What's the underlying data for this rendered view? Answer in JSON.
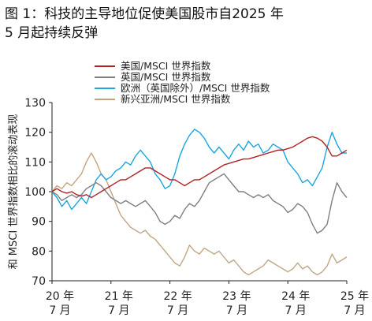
{
  "title_line1": "图 1：科技的主导地位促使美国股市自2025 年",
  "title_line2": "5 月起持续反弹",
  "chart_data": {
    "type": "line",
    "title": "图 1：科技的主导地位促使美国股市自2025 年 5 月起持续反弹",
    "ylabel": "和 MSCI 世界指数相比的滚动表现",
    "ylim": [
      70,
      130
    ],
    "yticks": [
      70,
      80,
      90,
      100,
      110,
      120,
      130
    ],
    "xlim": [
      0,
      60
    ],
    "xticks": [
      {
        "x": 0,
        "line1": "20 年",
        "line2": "7 月"
      },
      {
        "x": 12,
        "line1": "21 年",
        "line2": "7 月"
      },
      {
        "x": 24,
        "line1": "22 年",
        "line2": "7 月"
      },
      {
        "x": 36,
        "line1": "23 年",
        "line2": "7 月"
      },
      {
        "x": 48,
        "line1": "24 年",
        "line2": "7 月"
      },
      {
        "x": 60,
        "line1": "25 年",
        "line2": "7 月"
      }
    ],
    "legend_position": "top",
    "series": [
      {
        "name": "美国/MSCI 世界指数",
        "color": "#b22222",
        "points": [
          [
            0,
            100
          ],
          [
            1,
            101
          ],
          [
            2,
            100
          ],
          [
            3,
            99.5
          ],
          [
            4,
            100
          ],
          [
            5,
            99
          ],
          [
            6,
            98.5
          ],
          [
            7,
            99
          ],
          [
            8,
            98
          ],
          [
            9,
            99
          ],
          [
            10,
            100
          ],
          [
            11,
            101
          ],
          [
            12,
            102
          ],
          [
            13,
            103
          ],
          [
            14,
            104
          ],
          [
            15,
            104
          ],
          [
            16,
            105
          ],
          [
            17,
            106
          ],
          [
            18,
            107
          ],
          [
            19,
            108
          ],
          [
            20,
            108
          ],
          [
            21,
            107
          ],
          [
            22,
            106
          ],
          [
            23,
            105
          ],
          [
            24,
            104
          ],
          [
            25,
            104
          ],
          [
            26,
            103
          ],
          [
            27,
            102
          ],
          [
            28,
            103
          ],
          [
            29,
            104
          ],
          [
            30,
            104
          ],
          [
            31,
            105
          ],
          [
            32,
            106
          ],
          [
            33,
            107
          ],
          [
            34,
            108
          ],
          [
            35,
            109
          ],
          [
            36,
            109.5
          ],
          [
            37,
            110
          ],
          [
            38,
            110.5
          ],
          [
            39,
            111
          ],
          [
            40,
            111
          ],
          [
            41,
            111.5
          ],
          [
            42,
            112
          ],
          [
            43,
            112.5
          ],
          [
            44,
            113
          ],
          [
            45,
            113.5
          ],
          [
            46,
            114
          ],
          [
            47,
            114
          ],
          [
            48,
            114.5
          ],
          [
            49,
            115
          ],
          [
            50,
            116
          ],
          [
            51,
            117
          ],
          [
            52,
            118
          ],
          [
            53,
            118.5
          ],
          [
            54,
            118
          ],
          [
            55,
            117
          ],
          [
            56,
            115
          ],
          [
            57,
            112
          ],
          [
            58,
            112
          ],
          [
            59,
            113
          ],
          [
            60,
            114
          ]
        ]
      },
      {
        "name": "英国/MSCI 世界指数",
        "color": "#7f7f7f",
        "points": [
          [
            0,
            100
          ],
          [
            1,
            99
          ],
          [
            2,
            97
          ],
          [
            3,
            98
          ],
          [
            4,
            99
          ],
          [
            5,
            98
          ],
          [
            6,
            99
          ],
          [
            7,
            101
          ],
          [
            8,
            102
          ],
          [
            9,
            103
          ],
          [
            10,
            102
          ],
          [
            11,
            100
          ],
          [
            12,
            98
          ],
          [
            13,
            97
          ],
          [
            14,
            96
          ],
          [
            15,
            97
          ],
          [
            16,
            96
          ],
          [
            17,
            95
          ],
          [
            18,
            96
          ],
          [
            19,
            97
          ],
          [
            20,
            95
          ],
          [
            21,
            93
          ],
          [
            22,
            90
          ],
          [
            23,
            89
          ],
          [
            24,
            90
          ],
          [
            25,
            92
          ],
          [
            26,
            91
          ],
          [
            27,
            94
          ],
          [
            28,
            96
          ],
          [
            29,
            95
          ],
          [
            30,
            97
          ],
          [
            31,
            100
          ],
          [
            32,
            103
          ],
          [
            33,
            104
          ],
          [
            34,
            105
          ],
          [
            35,
            106
          ],
          [
            36,
            104
          ],
          [
            37,
            102
          ],
          [
            38,
            100
          ],
          [
            39,
            100
          ],
          [
            40,
            99
          ],
          [
            41,
            98
          ],
          [
            42,
            99
          ],
          [
            43,
            98
          ],
          [
            44,
            99
          ],
          [
            45,
            97
          ],
          [
            46,
            96
          ],
          [
            47,
            95
          ],
          [
            48,
            93
          ],
          [
            49,
            94
          ],
          [
            50,
            96
          ],
          [
            51,
            95
          ],
          [
            52,
            93
          ],
          [
            53,
            89
          ],
          [
            54,
            86
          ],
          [
            55,
            87
          ],
          [
            56,
            89
          ],
          [
            57,
            97
          ],
          [
            58,
            103
          ],
          [
            59,
            100
          ],
          [
            60,
            98
          ]
        ]
      },
      {
        "name": "欧洲（英国除外）/MSCI 世界指数",
        "color": "#1ba6df",
        "points": [
          [
            0,
            100
          ],
          [
            1,
            98
          ],
          [
            2,
            95
          ],
          [
            3,
            97
          ],
          [
            4,
            94
          ],
          [
            5,
            96
          ],
          [
            6,
            98
          ],
          [
            7,
            96
          ],
          [
            8,
            100
          ],
          [
            9,
            104
          ],
          [
            10,
            106
          ],
          [
            11,
            104
          ],
          [
            12,
            105
          ],
          [
            13,
            107
          ],
          [
            14,
            108
          ],
          [
            15,
            110
          ],
          [
            16,
            109
          ],
          [
            17,
            112
          ],
          [
            18,
            114
          ],
          [
            19,
            112
          ],
          [
            20,
            110
          ],
          [
            21,
            106
          ],
          [
            22,
            104
          ],
          [
            23,
            101
          ],
          [
            24,
            102
          ],
          [
            25,
            106
          ],
          [
            26,
            112
          ],
          [
            27,
            116
          ],
          [
            28,
            119
          ],
          [
            29,
            121
          ],
          [
            30,
            120
          ],
          [
            31,
            118
          ],
          [
            32,
            115
          ],
          [
            33,
            113
          ],
          [
            34,
            115
          ],
          [
            35,
            113
          ],
          [
            36,
            111
          ],
          [
            37,
            114
          ],
          [
            38,
            116
          ],
          [
            39,
            114
          ],
          [
            40,
            117
          ],
          [
            41,
            115
          ],
          [
            42,
            116
          ],
          [
            43,
            113
          ],
          [
            44,
            114
          ],
          [
            45,
            116
          ],
          [
            46,
            115
          ],
          [
            47,
            114
          ],
          [
            48,
            110
          ],
          [
            49,
            108
          ],
          [
            50,
            106
          ],
          [
            51,
            103
          ],
          [
            52,
            104
          ],
          [
            53,
            102
          ],
          [
            54,
            105
          ],
          [
            55,
            108
          ],
          [
            56,
            115
          ],
          [
            57,
            120
          ],
          [
            58,
            116
          ],
          [
            59,
            113
          ],
          [
            60,
            113
          ]
        ]
      },
      {
        "name": "新兴亚洲/MSCI 世界指数",
        "color": "#c2a583",
        "points": [
          [
            0,
            100
          ],
          [
            1,
            102
          ],
          [
            2,
            101
          ],
          [
            3,
            103
          ],
          [
            4,
            102
          ],
          [
            5,
            104
          ],
          [
            6,
            106
          ],
          [
            7,
            110
          ],
          [
            8,
            113
          ],
          [
            9,
            110
          ],
          [
            10,
            106
          ],
          [
            11,
            104
          ],
          [
            12,
            100
          ],
          [
            13,
            96
          ],
          [
            14,
            92
          ],
          [
            15,
            90
          ],
          [
            16,
            88
          ],
          [
            17,
            87
          ],
          [
            18,
            86
          ],
          [
            19,
            87
          ],
          [
            20,
            85
          ],
          [
            21,
            84
          ],
          [
            22,
            82
          ],
          [
            23,
            80
          ],
          [
            24,
            78
          ],
          [
            25,
            76
          ],
          [
            26,
            75
          ],
          [
            27,
            78
          ],
          [
            28,
            82
          ],
          [
            29,
            80
          ],
          [
            30,
            79
          ],
          [
            31,
            81
          ],
          [
            32,
            80
          ],
          [
            33,
            79
          ],
          [
            34,
            80
          ],
          [
            35,
            78
          ],
          [
            36,
            76
          ],
          [
            37,
            77
          ],
          [
            38,
            75
          ],
          [
            39,
            73
          ],
          [
            40,
            72
          ],
          [
            41,
            73
          ],
          [
            42,
            74
          ],
          [
            43,
            75
          ],
          [
            44,
            77
          ],
          [
            45,
            76
          ],
          [
            46,
            75
          ],
          [
            47,
            74
          ],
          [
            48,
            73
          ],
          [
            49,
            74
          ],
          [
            50,
            76
          ],
          [
            51,
            74
          ],
          [
            52,
            75
          ],
          [
            53,
            73
          ],
          [
            54,
            72
          ],
          [
            55,
            73
          ],
          [
            56,
            75
          ],
          [
            57,
            79
          ],
          [
            58,
            76
          ],
          [
            59,
            77
          ],
          [
            60,
            78
          ]
        ]
      }
    ]
  }
}
